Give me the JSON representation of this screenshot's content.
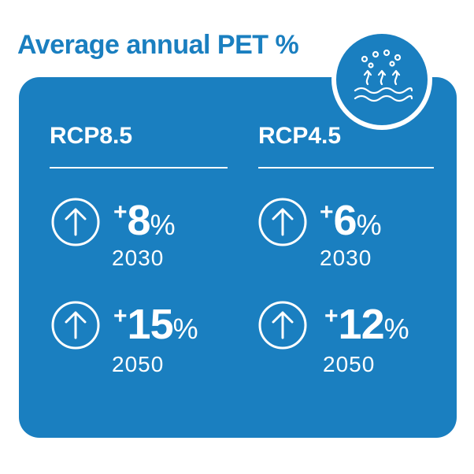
{
  "title": "Average annual PET %",
  "colors": {
    "title": "#1a7fc0",
    "card": "#1a7fc0",
    "badge": "#1a7fc0",
    "text": "#ffffff"
  },
  "badge_icon": "evaporation-icon",
  "columns": [
    {
      "label": "RCP8.5",
      "stats": [
        {
          "icon": "arrow-up-circle-icon",
          "plus": "+",
          "value": "8",
          "unit": "%",
          "year": "2030"
        },
        {
          "icon": "arrow-up-circle-icon",
          "plus": "+",
          "value": "15",
          "unit": "%",
          "year": "2050"
        }
      ]
    },
    {
      "label": "RCP4.5",
      "stats": [
        {
          "icon": "arrow-up-circle-icon",
          "plus": "+",
          "value": "6",
          "unit": "%",
          "year": "2030"
        },
        {
          "icon": "arrow-up-circle-icon",
          "plus": "+",
          "value": "12",
          "unit": "%",
          "year": "2050"
        }
      ]
    }
  ]
}
